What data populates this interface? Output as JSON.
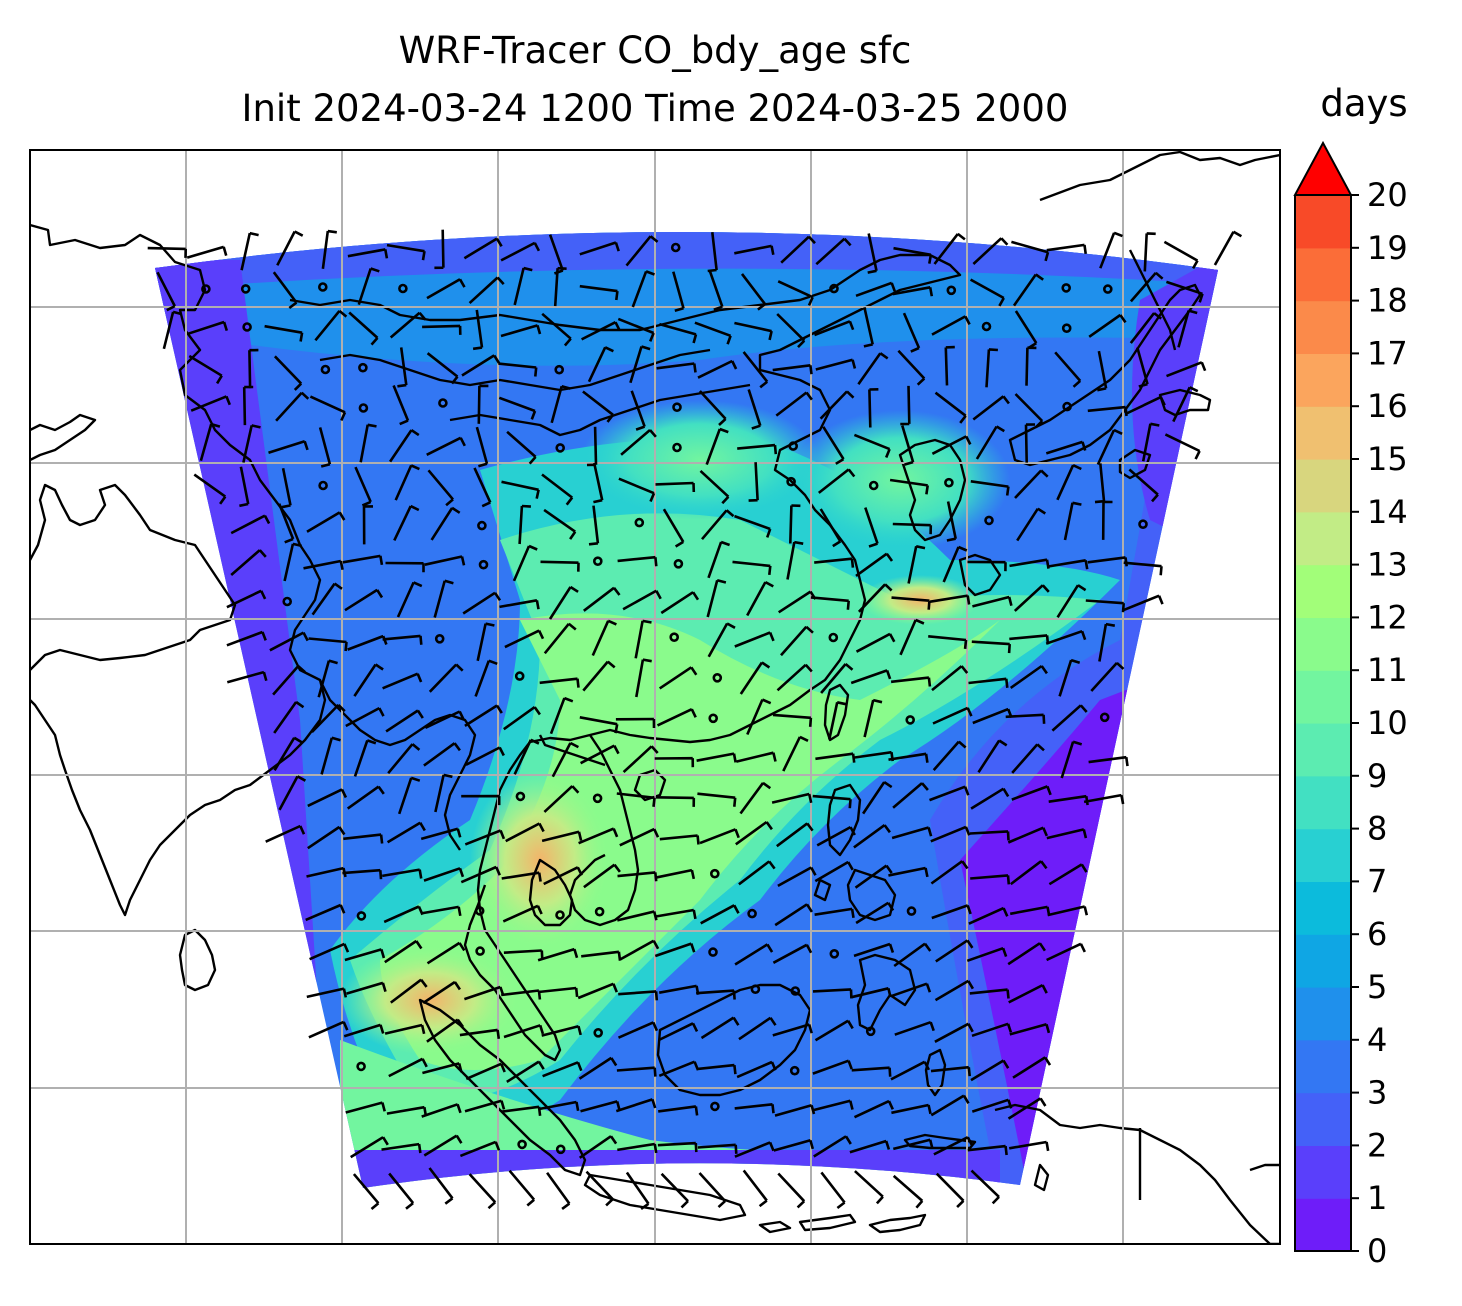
{
  "title": {
    "line1": "WRF-Tracer CO_bdy_age sfc",
    "line2": "Init 2024-03-24 1200 Time 2024-03-25 2000"
  },
  "colorbar": {
    "label": "days",
    "extend": "max",
    "ticks": [
      "0",
      "1",
      "2",
      "3",
      "4",
      "5",
      "6",
      "7",
      "8",
      "9",
      "10",
      "11",
      "12",
      "13",
      "14",
      "15",
      "16",
      "17",
      "18",
      "19",
      "20"
    ],
    "colors": [
      "#6e1df9",
      "#5a3ffb",
      "#4461f8",
      "#3377f3",
      "#1f90ec",
      "#0fa6e4",
      "#0cbbdc",
      "#28d0d2",
      "#42e0c2",
      "#5cecb1",
      "#72f59f",
      "#8afb8c",
      "#a2fe79",
      "#c2ec86",
      "#d8d67e",
      "#f0c070",
      "#fba55d",
      "#fb8a4a",
      "#fb6d38",
      "#f84a28",
      "#fa1608"
    ],
    "extend_color": "#ff0000"
  },
  "map": {
    "background": "#ffffff",
    "coastline_color": "#000000",
    "gridline_color": "#b0b0b0"
  }
}
